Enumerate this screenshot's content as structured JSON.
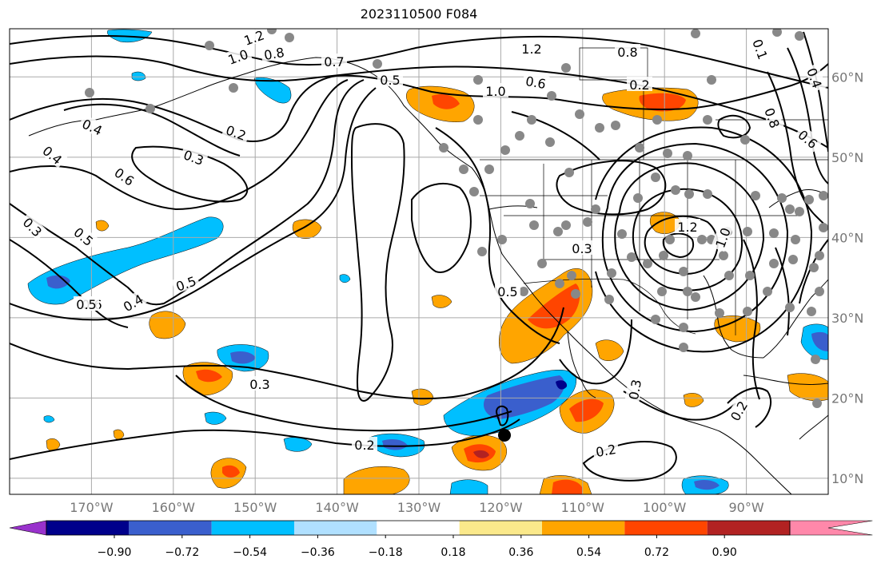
{
  "title": "2023110500 F084",
  "map": {
    "lon_labels": [
      "170°W",
      "160°W",
      "150°W",
      "140°W",
      "130°W",
      "120°W",
      "110°W",
      "100°W",
      "90°W"
    ],
    "lat_labels": [
      "60°N",
      "50°N",
      "40°N",
      "30°N",
      "20°N",
      "10°N"
    ],
    "lon_range": [
      -180,
      -80
    ],
    "lat_range": [
      8,
      66
    ],
    "grid": true
  },
  "colorbar": {
    "ticks": [
      "−0.90",
      "−0.72",
      "−0.54",
      "−0.36",
      "−0.18",
      "0.18",
      "0.36",
      "0.54",
      "0.72",
      "0.90"
    ],
    "colors": [
      "#9932cc",
      "#00008b",
      "#3a5fcd",
      "#00bfff",
      "#b0e0ff",
      "#ffffff",
      "#fbe98b",
      "#ffa500",
      "#ff4500",
      "#b22222",
      "#ff88aa"
    ]
  },
  "contour_labels": [
    "1.2",
    "1.0",
    "0.8",
    "0.7",
    "0.5",
    "1.2",
    "0.8",
    "0.6",
    "1.0",
    "0.2",
    "0.4",
    "0.2",
    "0.3",
    "0.6",
    "0.4",
    "0.5",
    "0.3",
    "0.5",
    "0.4",
    "0.6",
    "0.5",
    "0.3",
    "0.5",
    "1.2",
    "1.0",
    "0.3",
    "0.2",
    "0.2",
    "0.3",
    "0.2",
    "0.6",
    "0.8",
    "0.1",
    "0.4"
  ],
  "marker_point": {
    "lon": -119,
    "lat": 15
  }
}
